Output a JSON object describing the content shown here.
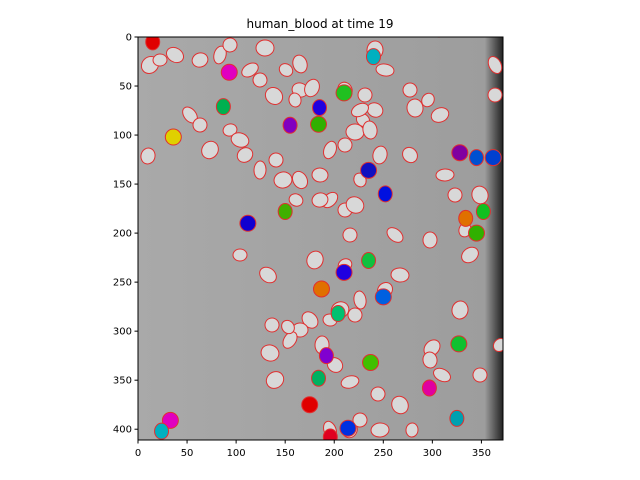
{
  "chart_data": {
    "type": "image",
    "title": "human_blood at time 19",
    "xlim": [
      0,
      372
    ],
    "ylim": [
      411,
      0
    ],
    "xticks": [
      0,
      50,
      100,
      150,
      200,
      250,
      300,
      350
    ],
    "yticks": [
      0,
      50,
      100,
      150,
      200,
      250,
      300,
      350,
      400
    ]
  }
}
